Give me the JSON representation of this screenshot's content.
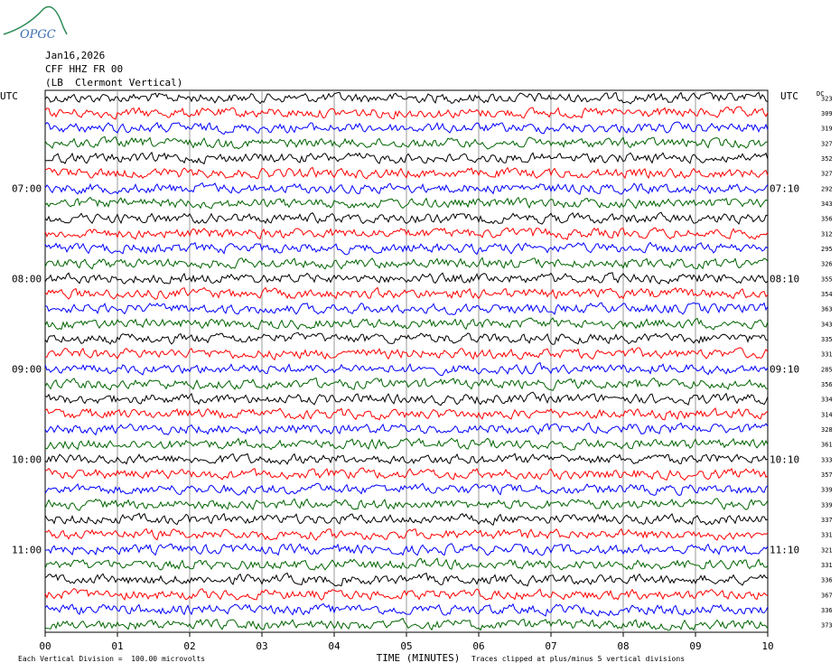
{
  "logo": "OPGC",
  "header": {
    "date": "Jan16,2026",
    "station": "CFF HHZ FR 00",
    "location": "(LB  Clermont Vertical)"
  },
  "left_axis": {
    "title": "UTC",
    "labels": [
      "07:00",
      "08:00",
      "09:00",
      "10:00",
      "11:00"
    ]
  },
  "right_axis": {
    "title": "UTC",
    "labels": [
      "07:10",
      "08:10",
      "09:10",
      "10:10",
      "11:10"
    ]
  },
  "dc": {
    "title": "DC",
    "values": [
      323,
      309,
      319,
      327,
      352,
      327,
      292,
      343,
      356,
      312,
      295,
      326,
      355,
      354,
      363,
      343,
      335,
      331,
      285,
      356,
      334,
      314,
      328,
      361,
      333,
      357,
      339,
      339,
      337,
      331,
      321,
      331,
      336,
      367,
      336,
      373
    ]
  },
  "x_axis": {
    "title": "TIME (MINUTES)",
    "ticks": [
      "00",
      "01",
      "02",
      "03",
      "04",
      "05",
      "06",
      "07",
      "08",
      "09",
      "10"
    ]
  },
  "footer": {
    "scale": "Each Vertical Division =  100.00 microvolts",
    "clip": "Traces clipped at plus/minus 5 vertical divisions"
  },
  "trace_colors": [
    "#000000",
    "#ff0000",
    "#0000ff",
    "#006400"
  ]
}
